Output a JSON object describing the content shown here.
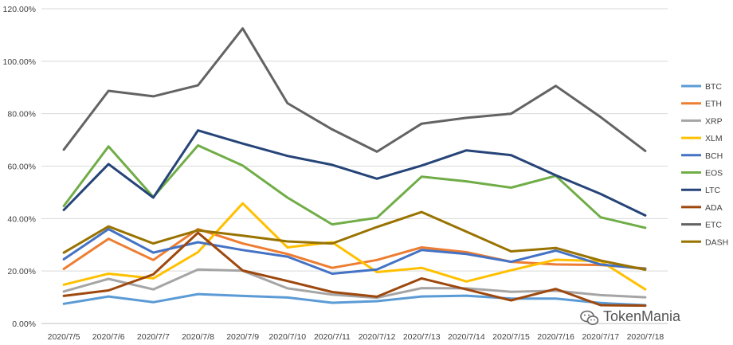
{
  "chart_data": {
    "type": "line",
    "categories": [
      "2020/7/5",
      "2020/7/6",
      "2020/7/7",
      "2020/7/8",
      "2020/7/9",
      "2020/7/10",
      "2020/7/11",
      "2020/7/12",
      "2020/7/13",
      "2020/7/14",
      "2020/7/15",
      "2020/7/16",
      "2020/7/17",
      "2020/7/18"
    ],
    "ylim": [
      0,
      120
    ],
    "yticks": [
      0,
      20,
      40,
      60,
      80,
      100,
      120
    ],
    "ytick_labels": [
      "0.00%",
      "20.00%",
      "40.00%",
      "60.00%",
      "80.00%",
      "100.00%",
      "120.00%"
    ],
    "grid": "horizontal",
    "legend_position": "right",
    "series": [
      {
        "name": "BTC",
        "color": "#5b9bd5",
        "values": [
          7.5,
          10.3,
          8.1,
          11.2,
          10.5,
          9.9,
          7.9,
          8.5,
          10.3,
          10.6,
          9.5,
          9.5,
          7.8,
          7.0
        ]
      },
      {
        "name": "ETH",
        "color": "#ed7d31",
        "values": [
          20.8,
          32.3,
          24.2,
          36.0,
          30.5,
          26.5,
          21.2,
          24.2,
          29.0,
          27.2,
          23.5,
          22.5,
          22.3,
          21.0
        ]
      },
      {
        "name": "XRP",
        "color": "#a5a5a5",
        "values": [
          12.2,
          17.0,
          13.0,
          20.6,
          20.1,
          13.4,
          11.0,
          9.8,
          13.5,
          13.4,
          12.1,
          12.5,
          10.8,
          10.0
        ]
      },
      {
        "name": "XLM",
        "color": "#ffc000",
        "values": [
          14.8,
          19.0,
          17.2,
          27.2,
          45.8,
          29.0,
          31.0,
          19.6,
          21.2,
          16.0,
          20.3,
          24.3,
          23.8,
          13.0
        ]
      },
      {
        "name": "BCH",
        "color": "#4472c4",
        "values": [
          24.5,
          36.0,
          27.0,
          31.0,
          28.0,
          25.5,
          19.0,
          20.6,
          28.0,
          26.5,
          23.5,
          27.8,
          22.5,
          20.8
        ]
      },
      {
        "name": "EOS",
        "color": "#70ad47",
        "values": [
          44.8,
          67.5,
          48.2,
          67.9,
          60.2,
          48.0,
          37.8,
          40.3,
          56.0,
          54.2,
          51.8,
          56.3,
          40.5,
          36.5
        ]
      },
      {
        "name": "LTC",
        "color": "#264478",
        "values": [
          43.3,
          60.8,
          48.0,
          73.6,
          68.6,
          63.9,
          60.5,
          55.2,
          60.2,
          66.0,
          64.2,
          56.5,
          49.4,
          41.2
        ]
      },
      {
        "name": "ADA",
        "color": "#9e480e",
        "values": [
          10.5,
          12.6,
          18.7,
          34.6,
          20.2,
          16.2,
          12.0,
          10.2,
          17.2,
          13.0,
          8.8,
          13.2,
          7.0,
          6.8
        ]
      },
      {
        "name": "ETC",
        "color": "#636363",
        "values": [
          66.3,
          88.7,
          86.6,
          90.8,
          112.5,
          84.0,
          74.0,
          65.5,
          76.2,
          78.4,
          80.0,
          90.6,
          78.7,
          65.8
        ]
      },
      {
        "name": "DASH",
        "color": "#997300",
        "values": [
          27.0,
          37.0,
          30.5,
          35.5,
          33.5,
          31.3,
          30.5,
          36.8,
          42.5,
          35.0,
          27.5,
          28.8,
          24.0,
          20.5
        ]
      }
    ]
  },
  "watermark": {
    "icon": "wechat-icon",
    "text": "TokenMania"
  }
}
